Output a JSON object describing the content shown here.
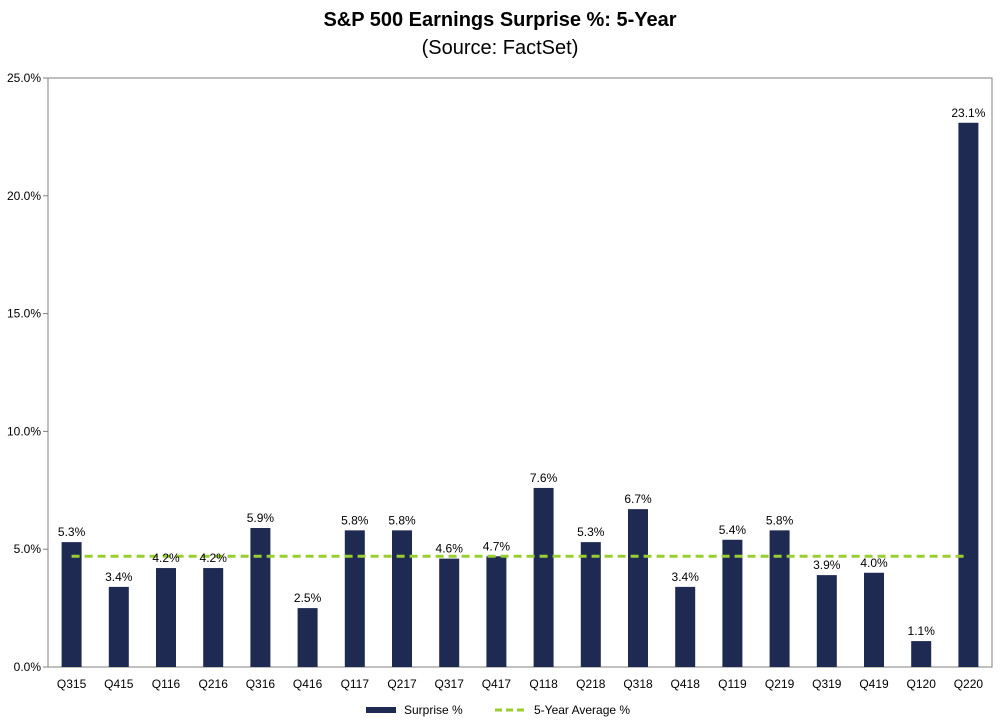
{
  "chart_data": {
    "type": "bar",
    "title": "S&P 500 Earnings Surprise %: 5-Year",
    "subtitle": "(Source: FactSet)",
    "categories": [
      "Q315",
      "Q415",
      "Q116",
      "Q216",
      "Q316",
      "Q416",
      "Q117",
      "Q217",
      "Q317",
      "Q417",
      "Q118",
      "Q218",
      "Q318",
      "Q418",
      "Q119",
      "Q219",
      "Q319",
      "Q419",
      "Q120",
      "Q220"
    ],
    "series": [
      {
        "name": "Surprise %",
        "type": "bar",
        "color": "#1f2a52",
        "values": [
          5.3,
          3.4,
          4.2,
          4.2,
          5.9,
          2.5,
          5.8,
          5.8,
          4.6,
          4.7,
          7.6,
          5.3,
          6.7,
          3.4,
          5.4,
          5.8,
          3.9,
          4.0,
          1.1,
          23.1
        ],
        "labels": [
          "5.3%",
          "3.4%",
          "4.2%",
          "4.2%",
          "5.9%",
          "2.5%",
          "5.8%",
          "5.8%",
          "4.6%",
          "4.7%",
          "7.6%",
          "5.3%",
          "6.7%",
          "3.4%",
          "5.4%",
          "5.8%",
          "3.9%",
          "4.0%",
          "1.1%",
          "23.1%"
        ]
      },
      {
        "name": "5-Year Average %",
        "type": "line",
        "style": "dashed",
        "color": "#9acd32",
        "value": 4.7
      }
    ],
    "ylim": [
      0,
      25
    ],
    "yticks": [
      0,
      5,
      10,
      15,
      20,
      25
    ],
    "ytick_labels": [
      "0.0%",
      "5.0%",
      "10.0%",
      "15.0%",
      "20.0%",
      "25.0%"
    ],
    "xlabel": "",
    "ylabel": "",
    "grid": false,
    "legend": "bottom-center"
  }
}
